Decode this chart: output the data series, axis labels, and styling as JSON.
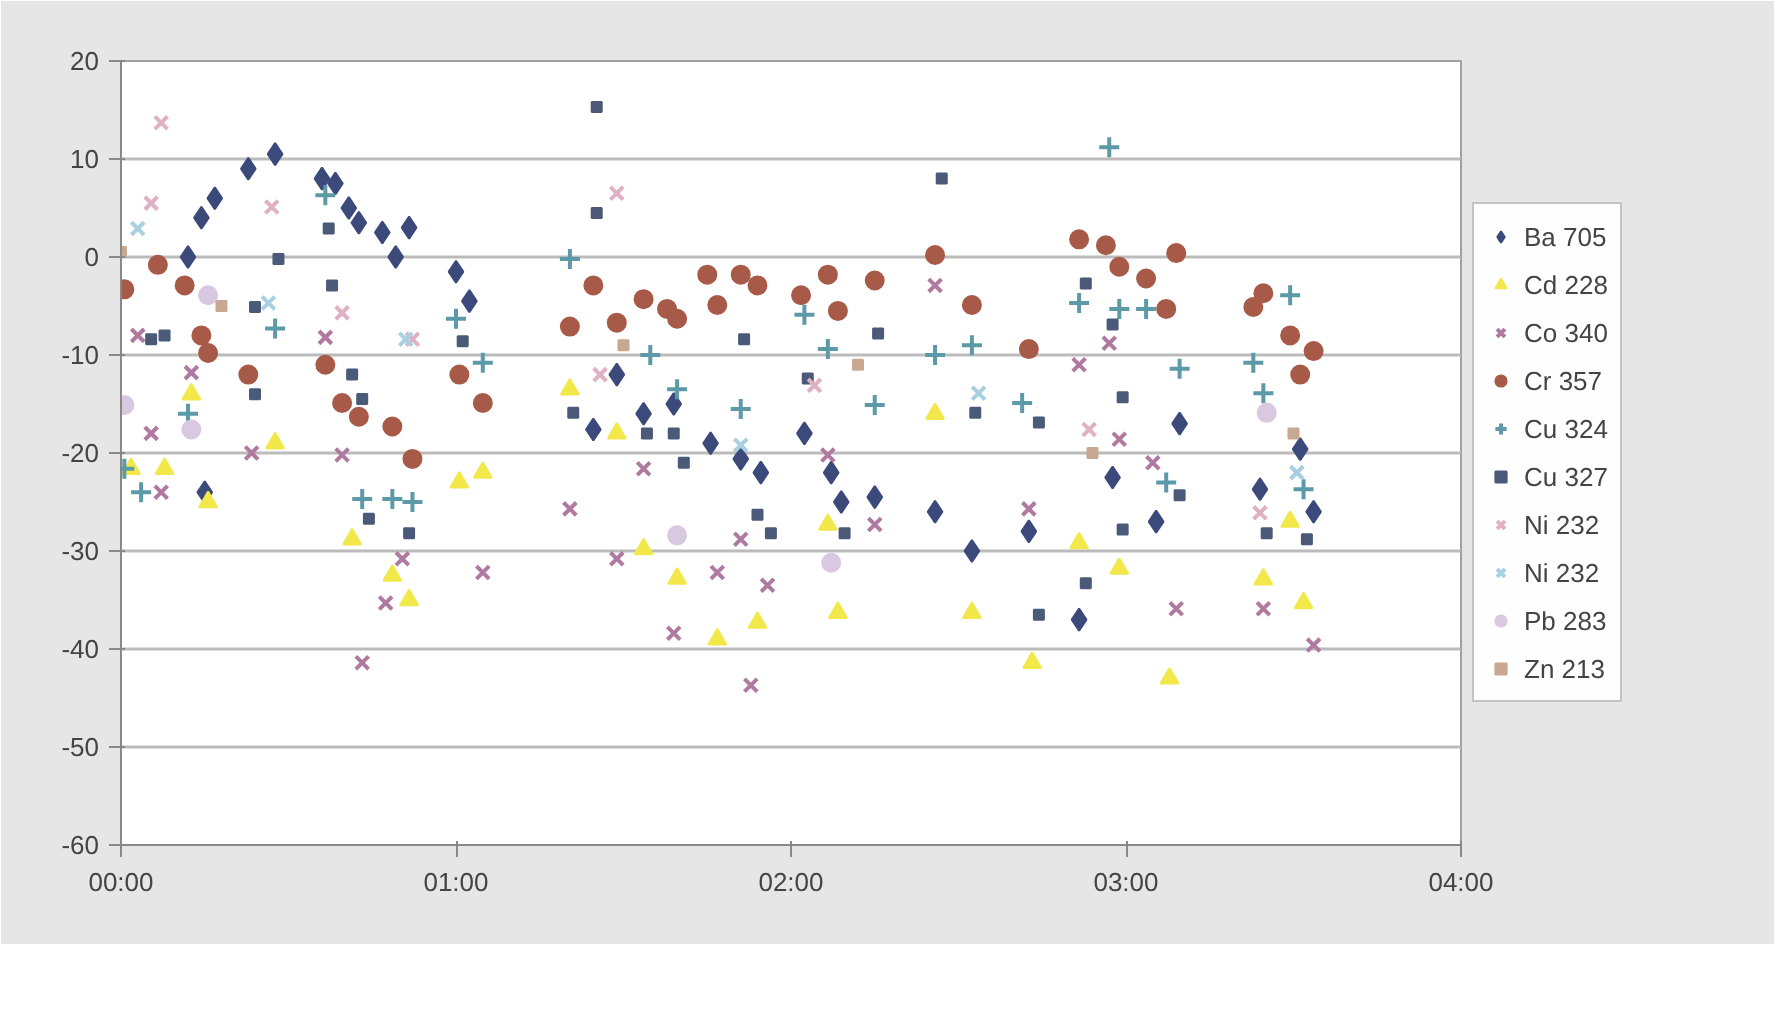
{
  "chart_data": {
    "type": "scatter",
    "xlim": [
      0,
      4
    ],
    "xticks": [
      {
        "value": 0,
        "label": "00:00"
      },
      {
        "value": 1,
        "label": "01:00"
      },
      {
        "value": 2,
        "label": "02:00"
      },
      {
        "value": 3,
        "label": "03:00"
      },
      {
        "value": 4,
        "label": "04:00"
      }
    ],
    "ylim": [
      -60,
      20
    ],
    "yticks": [
      -60,
      -50,
      -40,
      -30,
      -20,
      -10,
      0,
      10,
      20
    ],
    "grid": "y",
    "legend": "right",
    "series": [
      {
        "name": "Ba 705",
        "color": "#3b4a7a",
        "marker": "diamond",
        "x": [
          0.2,
          0.24,
          0.28,
          0.38,
          0.46,
          0.6,
          0.64,
          0.68,
          0.71,
          0.78,
          0.82,
          0.86,
          1.0,
          1.04,
          0.25,
          1.41,
          1.48,
          1.56,
          1.65,
          1.76,
          1.85,
          1.91,
          2.04,
          2.12,
          2.15,
          2.25,
          2.43,
          2.54,
          2.71,
          2.86,
          2.96,
          3.09,
          3.16,
          3.4,
          3.52,
          3.56
        ],
        "values": [
          0,
          4,
          6,
          9,
          10.5,
          8,
          7.5,
          5,
          3.5,
          2.5,
          0,
          3,
          -1.5,
          -4.5,
          -24,
          -17.6,
          -12,
          -16,
          -15,
          -19,
          -20.6,
          -22,
          -18,
          -22,
          -25,
          -24.5,
          -26,
          -30,
          -28,
          -37,
          -22.5,
          -27,
          -17,
          -23.7,
          -19.6,
          -26
        ]
      },
      {
        "name": "Cd 228",
        "color": "#f2e84a",
        "marker": "triangle",
        "x": [
          0.03,
          0.13,
          0.21,
          0.26,
          0.46,
          0.69,
          0.81,
          0.86,
          1.01,
          1.08,
          1.34,
          1.48,
          1.56,
          1.66,
          1.78,
          1.9,
          2.11,
          2.14,
          2.43,
          2.54,
          2.72,
          2.86,
          2.98,
          3.13,
          3.41,
          3.49,
          3.53
        ],
        "values": [
          -21.6,
          -21.6,
          -14,
          -25,
          -19,
          -28.8,
          -32.5,
          -35,
          -23,
          -22,
          -13.5,
          -18,
          -29.8,
          -32.8,
          -39,
          -37.3,
          -27.3,
          -36.3,
          -16,
          -36.3,
          -41.4,
          -29.2,
          -31.8,
          -43,
          -32.9,
          -27,
          -35.3
        ]
      },
      {
        "name": "Co 340",
        "color": "#b07aa0",
        "marker": "x",
        "x": [
          0.05,
          0.09,
          0.12,
          0.21,
          0.39,
          0.61,
          0.66,
          0.72,
          0.79,
          0.84,
          1.08,
          1.34,
          1.48,
          1.56,
          1.65,
          1.78,
          1.85,
          1.88,
          1.93,
          2.11,
          2.25,
          2.43,
          2.71,
          2.86,
          2.95,
          2.98,
          3.08,
          3.15,
          3.41,
          3.56
        ],
        "values": [
          -8,
          -18,
          -24,
          -11.8,
          -20,
          -8.2,
          -20.2,
          -41.4,
          -35.3,
          -30.8,
          -32.2,
          -25.7,
          -30.8,
          -21.6,
          -38.4,
          -32.2,
          -28.8,
          -43.7,
          -33.5,
          -20.2,
          -27.3,
          -2.9,
          -25.7,
          -11,
          -8.8,
          -18.6,
          -21,
          -35.9,
          -35.9,
          -39.6
        ]
      },
      {
        "name": "Cr 357",
        "color": "#a85a48",
        "marker": "circle",
        "x": [
          0.01,
          0.11,
          0.19,
          0.24,
          0.26,
          0.38,
          0.61,
          0.66,
          0.71,
          0.81,
          0.87,
          1.01,
          1.08,
          1.34,
          1.41,
          1.48,
          1.56,
          1.63,
          1.66,
          1.75,
          1.78,
          1.85,
          1.9,
          2.03,
          2.11,
          2.14,
          2.25,
          2.43,
          2.54,
          2.71,
          2.86,
          2.94,
          2.98,
          3.06,
          3.12,
          3.15,
          3.38,
          3.41,
          3.49,
          3.52,
          3.56
        ],
        "values": [
          -3.3,
          -0.8,
          -2.9,
          -8,
          -9.8,
          -12,
          -11,
          -14.9,
          -16.3,
          -17.3,
          -20.6,
          -12,
          -14.9,
          -7.1,
          -2.9,
          -6.7,
          -4.3,
          -5.3,
          -6.3,
          -1.8,
          -4.9,
          -1.8,
          -2.9,
          -3.9,
          -1.8,
          -5.5,
          -2.4,
          0.2,
          -4.9,
          -9.4,
          1.8,
          1.2,
          -1,
          -2.2,
          -5.3,
          0.4,
          -5.1,
          -3.7,
          -8,
          -12,
          -9.6
        ]
      },
      {
        "name": "Cu 324",
        "color": "#5c9aa8",
        "marker": "cross",
        "x": [
          0.01,
          0.06,
          0.2,
          0.46,
          0.61,
          0.72,
          0.81,
          0.87,
          1.0,
          1.08,
          1.34,
          1.58,
          1.66,
          1.85,
          2.04,
          2.11,
          2.25,
          2.43,
          2.54,
          2.69,
          2.86,
          2.95,
          2.98,
          3.06,
          3.12,
          3.16,
          3.38,
          3.41,
          3.49,
          3.53
        ],
        "values": [
          -21.6,
          -24,
          -16,
          -7.3,
          6.3,
          -24.7,
          -24.7,
          -25,
          -6.3,
          -10.8,
          -0.2,
          -10,
          -13.5,
          -15.5,
          -5.9,
          -9.4,
          -15.1,
          -10,
          -9,
          -14.9,
          -4.7,
          11.2,
          -5.3,
          -5.3,
          -23,
          -11.4,
          -10.8,
          -13.9,
          -3.9,
          -23.7
        ]
      },
      {
        "name": "Cu 327",
        "color": "#4a5a78",
        "marker": "square",
        "x": [
          0.09,
          0.13,
          0.4,
          0.4,
          0.47,
          0.62,
          0.63,
          0.69,
          0.72,
          0.74,
          0.86,
          1.02,
          1.35,
          1.42,
          1.42,
          1.57,
          1.65,
          1.68,
          1.86,
          1.9,
          1.94,
          2.05,
          2.16,
          2.26,
          2.45,
          2.55,
          2.74,
          2.74,
          2.88,
          2.88,
          2.96,
          2.99,
          2.99,
          3.16,
          3.42,
          3.54
        ],
        "values": [
          -8.4,
          -8,
          -5.1,
          -14,
          -0.2,
          2.9,
          -2.9,
          -12,
          -14.5,
          -26.7,
          -28.2,
          -8.6,
          -15.9,
          15.3,
          4.5,
          -18,
          -18,
          -21,
          -8.4,
          -26.3,
          -28.2,
          -12.4,
          -28.2,
          -7.8,
          8,
          -15.9,
          -16.9,
          -36.5,
          -2.7,
          -33.3,
          -6.9,
          -14.3,
          -27.8,
          -24.3,
          -28.2,
          -28.8
        ]
      },
      {
        "name": "Ni 232",
        "color": "#e0b0c4",
        "marker": "x",
        "x": [
          0.09,
          0.12,
          0.45,
          0.66,
          0.87,
          1.43,
          1.48,
          2.07,
          2.89,
          3.4
        ],
        "values": [
          5.5,
          13.7,
          5.1,
          -5.7,
          -8.4,
          -12,
          6.5,
          -13.1,
          -17.6,
          -26.1
        ]
      },
      {
        "name": "Ni 232",
        "color": "#a8d0e0",
        "marker": "x",
        "x": [
          0.05,
          0.44,
          0.85,
          1.85,
          2.56,
          3.51
        ],
        "values": [
          2.9,
          -4.7,
          -8.4,
          -19.2,
          -13.9,
          -22
        ]
      },
      {
        "name": "Pb 283",
        "color": "#d8c8e0",
        "marker": "circle",
        "x": [
          0.01,
          0.21,
          0.26,
          1.66,
          2.12,
          3.42
        ],
        "values": [
          -15.1,
          -17.6,
          -3.9,
          -28.4,
          -31.2,
          -15.9
        ]
      },
      {
        "name": "Zn 213",
        "color": "#c8a890",
        "marker": "square",
        "x": [
          0.0,
          0.3,
          1.5,
          2.2,
          2.9,
          3.5
        ],
        "values": [
          0.5,
          -5,
          -9,
          -11,
          -20,
          -18
        ]
      }
    ]
  }
}
